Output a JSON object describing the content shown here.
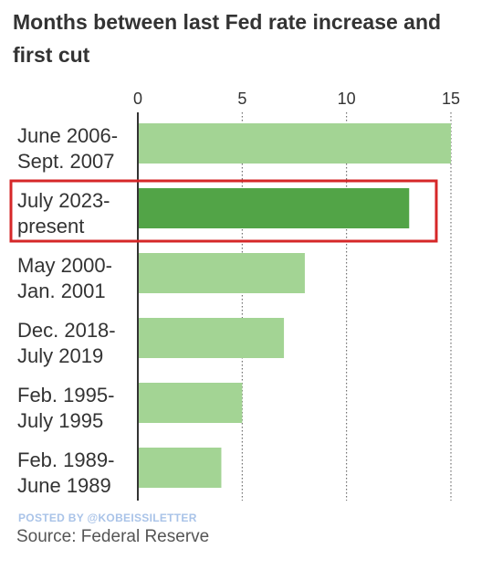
{
  "chart_data": {
    "type": "bar",
    "orientation": "horizontal",
    "title": "Months between last Fed rate increase and first cut",
    "categories": [
      [
        "June 2006-",
        "Sept. 2007"
      ],
      [
        "July 2023-",
        "present"
      ],
      [
        "May 2000-",
        "Jan. 2001"
      ],
      [
        "Dec. 2018-",
        "July 2019"
      ],
      [
        "Feb. 1995-",
        "July 1995"
      ],
      [
        "Feb. 1989-",
        "June 1989"
      ]
    ],
    "values": [
      15,
      13,
      8,
      7,
      5,
      4
    ],
    "highlighted_index": 1,
    "xlim": [
      0,
      15
    ],
    "xticks": [
      0,
      5,
      10,
      15
    ],
    "grid": true,
    "colors": {
      "bar": "#a3d494",
      "highlight": "#52a447",
      "highlight_box": "#d62728",
      "grid": "#555555"
    }
  },
  "footer": {
    "watermark": "POSTED BY @KOBEISSILETTER",
    "source": "Source: Federal Reserve"
  }
}
